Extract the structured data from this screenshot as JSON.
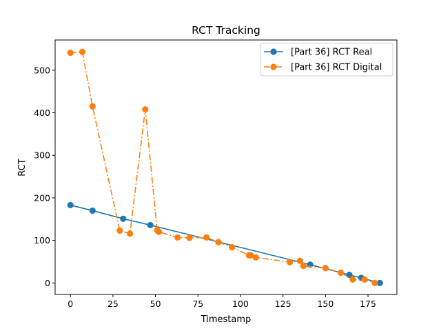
{
  "chart_data": {
    "type": "line",
    "title": "RCT Tracking",
    "xlabel": "Timestamp",
    "ylabel": "RCT",
    "xlim": [
      -9,
      192
    ],
    "ylim": [
      -27,
      571
    ],
    "xticks": [
      0,
      25,
      50,
      75,
      100,
      125,
      150,
      175
    ],
    "yticks": [
      0,
      100,
      200,
      300,
      400,
      500
    ],
    "grid": false,
    "legend": "top-right",
    "series": [
      {
        "name": "[Part 36] RCT Real",
        "color": "#1f77b4",
        "linestyle": "solid",
        "x": [
          0,
          13,
          31,
          47,
          141,
          164,
          171,
          182
        ],
        "y": [
          183,
          170,
          151,
          136,
          43,
          19,
          12,
          0
        ]
      },
      {
        "name": "[Part 36] RCT Digital",
        "color": "#ff7f0e",
        "linestyle": "dashdot",
        "x": [
          0,
          7,
          13,
          29,
          35,
          44,
          51,
          52,
          63,
          70,
          80,
          87,
          95,
          105,
          106,
          109,
          129,
          135,
          137,
          150,
          159,
          166,
          173,
          179
        ],
        "y": [
          541,
          543,
          415,
          123,
          116,
          408,
          124,
          120,
          107,
          106,
          107,
          96,
          84,
          65,
          65,
          60,
          49,
          52,
          40,
          35,
          24,
          8,
          8,
          0
        ]
      }
    ]
  }
}
